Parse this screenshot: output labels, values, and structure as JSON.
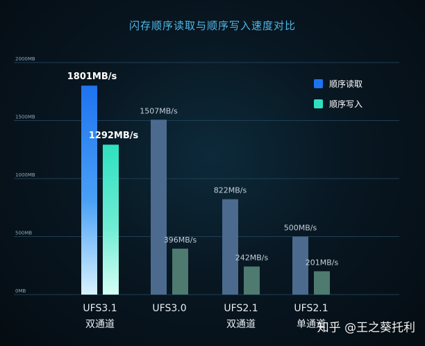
{
  "chart_data": {
    "type": "bar",
    "title": "闪存顺序读取与顺序写入速度对比",
    "categories": [
      {
        "line1": "UFS3.1",
        "line2": "双通道"
      },
      {
        "line1": "UFS3.0",
        "line2": ""
      },
      {
        "line1": "UFS2.1",
        "line2": "双通道"
      },
      {
        "line1": "UFS2.1",
        "line2": "单通道"
      }
    ],
    "series": [
      {
        "name": "顺序读取",
        "values": [
          1801,
          1507,
          822,
          500
        ],
        "labels": [
          "1801MB/s",
          "1507MB/s",
          "822MB/s",
          "500MB/s"
        ]
      },
      {
        "name": "顺序写入",
        "values": [
          1292,
          396,
          242,
          201
        ],
        "labels": [
          "1292MB/s",
          "396MB/s",
          "242MB/s",
          "201MB/s"
        ]
      }
    ],
    "yticks": [
      0,
      500,
      1000,
      1500,
      2000
    ],
    "ytick_labels": [
      "0MB",
      "500MB",
      "1000MB",
      "1500MB",
      "2000MB"
    ],
    "ylim": [
      0,
      2000
    ],
    "grid": true,
    "legend_position": "top-right",
    "colors": {
      "read_highlight_top": "#1e73f0",
      "read_highlight_bottom": "#d8f2ff",
      "write_highlight_top": "#2fe0c0",
      "write_highlight_bottom": "#d6fff5",
      "read_muted": "#4b6a8e",
      "write_muted": "#4e7a70",
      "title": "#4fb8e8",
      "grid": "#1f3f55"
    }
  },
  "watermark": "知乎 @王之葵托利"
}
